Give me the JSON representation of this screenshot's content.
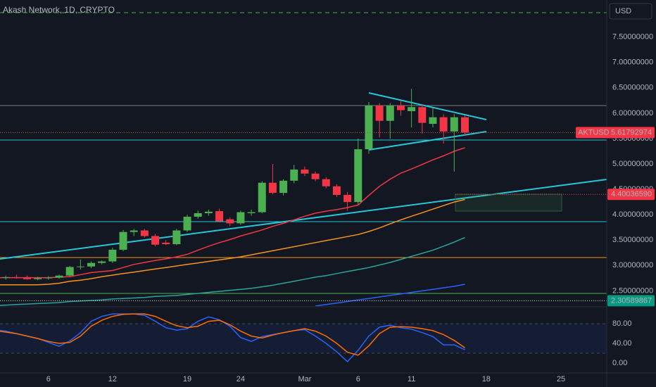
{
  "chart_data": [
    {
      "type": "candlestick",
      "title": "Akash Network, 1D, CRYPTO",
      "currency": "USD",
      "symbol": "AKTUSD",
      "categories": [
        null,
        null,
        null,
        null,
        null,
        "6",
        null,
        null,
        null,
        null,
        null,
        "12",
        null,
        null,
        null,
        null,
        null,
        null,
        "19",
        null,
        null,
        null,
        null,
        "24",
        null,
        null,
        null,
        null,
        null,
        "Mar",
        null,
        null,
        null,
        null,
        "6",
        null,
        null,
        null,
        null,
        "11",
        null,
        null,
        null,
        null,
        null,
        null,
        "18",
        null,
        null,
        null,
        null,
        null,
        null,
        "25",
        null,
        null,
        null
      ],
      "open": [
        null,
        2.76,
        2.77,
        2.77,
        2.73,
        2.75,
        2.76,
        2.8,
        2.97,
        2.98,
        3.05,
        3.08,
        3.31,
        3.66,
        3.69,
        3.58,
        3.45,
        3.42,
        3.69,
        3.96,
        4.03,
        4.07,
        3.91,
        3.83,
        4.03,
        4.05,
        4.63,
        4.43,
        4.67,
        4.89,
        4.81,
        4.7,
        4.56,
        4.39,
        4.25,
        5.29,
        6.15,
        5.85,
        6.15,
        6.04,
        6.12,
        5.79,
        5.92,
        5.64,
        5.92,
        null,
        null,
        null,
        null,
        null,
        null,
        null,
        null,
        null,
        null,
        null,
        null
      ],
      "high": [
        null,
        2.8,
        2.82,
        2.8,
        2.78,
        2.79,
        2.82,
        2.99,
        3.12,
        3.08,
        3.1,
        3.35,
        3.7,
        3.72,
        3.72,
        3.62,
        3.5,
        3.72,
        4.0,
        4.08,
        4.1,
        4.12,
        3.95,
        4.08,
        4.1,
        4.66,
        5.0,
        4.7,
        4.98,
        4.95,
        4.85,
        4.74,
        4.6,
        4.45,
        5.5,
        6.22,
        6.2,
        6.2,
        6.25,
        6.48,
        6.18,
        6.1,
        5.98,
        5.98,
        5.95,
        null,
        null,
        null,
        null,
        null,
        null,
        null,
        null,
        null,
        null,
        null,
        null
      ],
      "low": [
        null,
        2.72,
        2.74,
        2.72,
        2.71,
        2.72,
        2.74,
        2.79,
        2.92,
        2.95,
        3.02,
        3.05,
        3.28,
        3.58,
        3.55,
        3.38,
        3.4,
        3.4,
        3.66,
        3.92,
        3.98,
        3.85,
        3.78,
        3.8,
        3.98,
        4.03,
        4.4,
        4.38,
        4.62,
        4.76,
        4.66,
        4.52,
        4.35,
        4.08,
        4.2,
        5.2,
        5.52,
        5.5,
        5.95,
        5.72,
        5.6,
        5.72,
        5.4,
        4.85,
        5.55,
        null,
        null,
        null,
        null,
        null,
        null,
        null,
        null,
        null,
        null,
        null,
        null
      ],
      "close": [
        null,
        2.77,
        2.76,
        2.73,
        2.75,
        2.76,
        2.8,
        2.97,
        2.98,
        3.05,
        3.08,
        3.31,
        3.66,
        3.69,
        3.58,
        3.41,
        3.42,
        3.69,
        3.96,
        4.03,
        4.06,
        3.87,
        3.83,
        4.05,
        4.05,
        4.63,
        4.43,
        4.67,
        4.89,
        4.81,
        4.7,
        4.56,
        4.39,
        4.25,
        5.29,
        6.15,
        5.85,
        6.15,
        6.06,
        6.12,
        5.81,
        5.92,
        5.64,
        5.92,
        5.61792974,
        null,
        null,
        null,
        null,
        null,
        null,
        null,
        null,
        null,
        null,
        null,
        null
      ],
      "up_color": "#4caf50",
      "down_color": "#f23645",
      "series": [
        {
          "color": "#f23645",
          "values": [
            2.76,
            2.76,
            2.76,
            2.76,
            2.76,
            2.76,
            2.77,
            2.78,
            2.82,
            2.86,
            2.88,
            2.9,
            2.96,
            3.02,
            3.06,
            3.1,
            3.13,
            3.17,
            3.22,
            3.3,
            3.38,
            3.45,
            3.51,
            3.58,
            3.64,
            3.7,
            3.77,
            3.83,
            3.9,
            3.97,
            4.03,
            4.07,
            4.1,
            4.14,
            4.19,
            4.38,
            4.56,
            4.7,
            4.82,
            4.9,
            4.99,
            5.08,
            5.16,
            5.25,
            5.32,
            null,
            null,
            null,
            null,
            null,
            null,
            null,
            null,
            null,
            null,
            null,
            null
          ]
        },
        {
          "color": "#f7931a",
          "values": [
            2.62,
            2.62,
            2.62,
            2.62,
            2.62,
            2.63,
            2.65,
            2.69,
            2.71,
            2.74,
            2.78,
            2.81,
            2.84,
            2.87,
            2.9,
            2.93,
            2.96,
            2.99,
            3.02,
            3.05,
            3.08,
            3.11,
            3.14,
            3.17,
            3.21,
            3.25,
            3.29,
            3.33,
            3.37,
            3.41,
            3.45,
            3.49,
            3.53,
            3.57,
            3.61,
            3.67,
            3.74,
            3.82,
            3.9,
            3.97,
            4.04,
            4.11,
            4.18,
            4.25,
            4.3,
            null,
            null,
            null,
            null,
            null,
            null,
            null,
            null,
            null,
            null,
            null,
            null
          ]
        },
        {
          "color": "#26a69a",
          "values": [
            2.21,
            2.22,
            2.23,
            2.24,
            2.25,
            2.26,
            2.27,
            2.29,
            2.3,
            2.31,
            2.32,
            2.34,
            2.35,
            2.36,
            2.37,
            2.39,
            2.4,
            2.41,
            2.43,
            2.45,
            2.47,
            2.49,
            2.51,
            2.53,
            2.55,
            2.58,
            2.61,
            2.65,
            2.69,
            2.73,
            2.77,
            2.8,
            2.84,
            2.88,
            2.92,
            2.96,
            3.01,
            3.06,
            3.12,
            3.18,
            3.24,
            3.3,
            3.38,
            3.46,
            3.55,
            null,
            null,
            null,
            null,
            null,
            null,
            null,
            null,
            null,
            null,
            null,
            null
          ]
        },
        {
          "color": "#2962ff",
          "values": [
            null,
            null,
            null,
            null,
            null,
            null,
            null,
            null,
            null,
            null,
            null,
            null,
            null,
            null,
            null,
            null,
            null,
            null,
            null,
            null,
            null,
            null,
            null,
            null,
            null,
            null,
            null,
            null,
            null,
            null,
            2.2,
            2.23,
            2.26,
            2.29,
            2.32,
            2.35,
            2.38,
            2.41,
            2.44,
            2.47,
            2.5,
            2.53,
            2.56,
            2.59,
            2.63,
            null,
            null,
            null,
            null,
            null,
            null,
            null,
            null,
            null,
            null,
            null,
            null
          ]
        }
      ],
      "price_lines": [
        {
          "value": 4.4003659,
          "label": "4.40036590",
          "color": "#f23645"
        },
        {
          "value": 2.30589867,
          "color": "#089981"
        }
      ],
      "ylim": [
        2.2,
        8.23
      ],
      "yticks": [
        {
          "value": 2.5,
          "label": "2.50000000"
        },
        {
          "value": 3.0,
          "label": "3.00000000"
        },
        {
          "value": 3.5,
          "label": "3.50000000"
        },
        {
          "value": 4.0,
          "label": "4.00000000"
        },
        {
          "value": 4.5,
          "label": "4.50000000"
        },
        {
          "value": 5.0,
          "label": "5.00000000"
        },
        {
          "value": 5.5,
          "label": "5.50000000"
        },
        {
          "value": 6.0,
          "label": "6.00000000"
        },
        {
          "value": 6.5,
          "label": "6.50000000"
        },
        {
          "value": 7.0,
          "label": "7.00000000"
        },
        {
          "value": 7.5,
          "label": "7.50000000"
        }
      ],
      "grid": false
    },
    {
      "type": "line",
      "series": [
        {
          "color": "#2962ff",
          "values": [
            68,
            65,
            60,
            55,
            50,
            42,
            34,
            45,
            62,
            85,
            95,
            100,
            100,
            100,
            97,
            85,
            72,
            67,
            70,
            85,
            94,
            88,
            75,
            52,
            44,
            54,
            58,
            62,
            66,
            68,
            55,
            40,
            23,
            3,
            26,
            55,
            73,
            77,
            72,
            69,
            62,
            54,
            37,
            37,
            27,
            null,
            null,
            null,
            null,
            null,
            null,
            null,
            null,
            null,
            null,
            null,
            null
          ]
        },
        {
          "color": "#ff6d00",
          "values": [
            66,
            63,
            60,
            55,
            50,
            44,
            40,
            42,
            55,
            75,
            87,
            95,
            99,
            100,
            100,
            95,
            85,
            76,
            72,
            75,
            85,
            87,
            78,
            65,
            55,
            51,
            57,
            62,
            66,
            70,
            65,
            55,
            40,
            22,
            16,
            35,
            60,
            73,
            74,
            73,
            70,
            66,
            58,
            46,
            31,
            null,
            null,
            null,
            null,
            null,
            null,
            null,
            null,
            null,
            null,
            null,
            null
          ]
        }
      ],
      "band": [
        20,
        80
      ],
      "ylim": [
        -20,
        113
      ],
      "yticks": [
        {
          "value": 0,
          "label": "0.00"
        },
        {
          "value": 40,
          "label": "40.00"
        },
        {
          "value": 80,
          "label": "80.00"
        }
      ],
      "grid": false
    }
  ]
}
